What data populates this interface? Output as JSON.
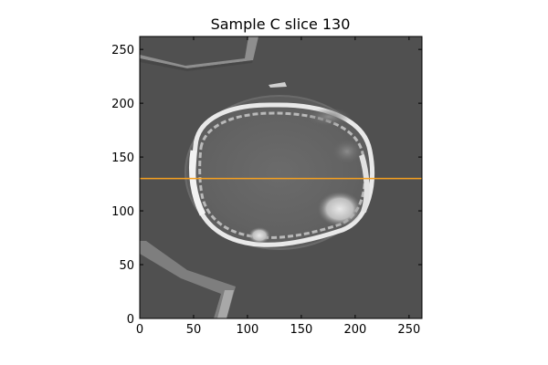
{
  "chart_data": {
    "type": "heatmap",
    "title": "Sample C slice 130",
    "xlabel": "",
    "ylabel": "",
    "xlim": [
      0,
      262
    ],
    "ylim": [
      0,
      262
    ],
    "x_ticks": [
      0,
      50,
      100,
      150,
      200,
      250
    ],
    "y_ticks": [
      0,
      50,
      100,
      150,
      200,
      250
    ],
    "x_tick_labels": [
      "0",
      "50",
      "100",
      "150",
      "200",
      "250"
    ],
    "y_tick_labels": [
      "0",
      "50",
      "100",
      "150",
      "200",
      "250"
    ],
    "slice_line": {
      "y": 130,
      "color": "#f5a020"
    },
    "image": "grayscale CT cross-section",
    "grid": false
  }
}
